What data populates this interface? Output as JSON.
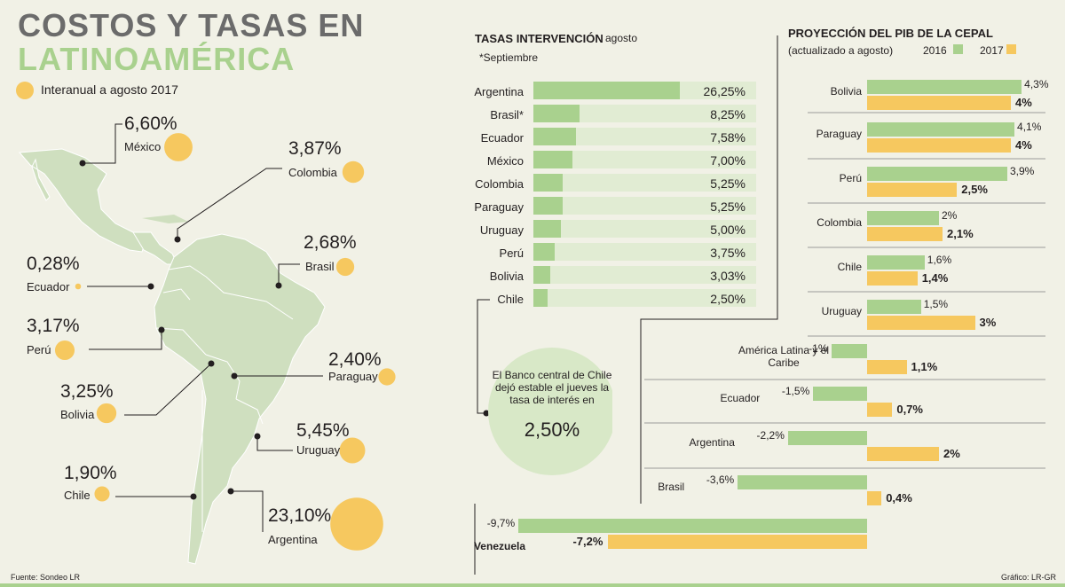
{
  "title": {
    "line1": "COSTOS Y TASAS EN",
    "line2": "LATINOAMÉRICA"
  },
  "legend": {
    "label": "Interanual a agosto 2017",
    "color": "#f6c85f"
  },
  "colors": {
    "green": "#a9d18e",
    "track": "#e1ecd3",
    "yellow": "#f6c85f",
    "map": "#cfdfbf"
  },
  "map_points": [
    {
      "country": "México",
      "pct": "6,60%",
      "value": 6.6
    },
    {
      "country": "Colombia",
      "pct": "3,87%",
      "value": 3.87
    },
    {
      "country": "Brasil",
      "pct": "2,68%",
      "value": 2.68
    },
    {
      "country": "Ecuador",
      "pct": "0,28%",
      "value": 0.28
    },
    {
      "country": "Perú",
      "pct": "3,17%",
      "value": 3.17
    },
    {
      "country": "Paraguay",
      "pct": "2,40%",
      "value": 2.4
    },
    {
      "country": "Bolivia",
      "pct": "3,25%",
      "value": 3.25
    },
    {
      "country": "Uruguay",
      "pct": "5,45%",
      "value": 5.45
    },
    {
      "country": "Chile",
      "pct": "1,90%",
      "value": 1.9
    },
    {
      "country": "Argentina",
      "pct": "23,10%",
      "value": 23.1
    }
  ],
  "rates": {
    "title": "TASAS INTERVENCIÓN",
    "subtitle": "agosto",
    "note": "*Septiembre",
    "items": [
      {
        "country": "Argentina",
        "value": 26.25,
        "label": "26,25%"
      },
      {
        "country": "Brasil*",
        "value": 8.25,
        "label": "8,25%"
      },
      {
        "country": "Ecuador",
        "value": 7.58,
        "label": "7,58%"
      },
      {
        "country": "México",
        "value": 7.0,
        "label": "7,00%"
      },
      {
        "country": "Colombia",
        "value": 5.25,
        "label": "5,25%"
      },
      {
        "country": "Paraguay",
        "value": 5.25,
        "label": "5,25%"
      },
      {
        "country": "Uruguay",
        "value": 5.0,
        "label": "5,00%"
      },
      {
        "country": "Perú",
        "value": 3.75,
        "label": "3,75%"
      },
      {
        "country": "Bolivia",
        "value": 3.03,
        "label": "3,03%"
      },
      {
        "country": "Chile",
        "value": 2.5,
        "label": "2,50%"
      }
    ]
  },
  "callout": {
    "text": "El Banco central de Chile dejó estable el jueves la tasa de interés en",
    "value": "2,50%"
  },
  "chart_data": {
    "type": "bar",
    "title": "PROYECCIÓN DEL PIB DE LA CEPAL",
    "subtitle": "(actualizado a agosto)",
    "legend": [
      "2016",
      "2017"
    ],
    "categories": [
      "Bolivia",
      "Paraguay",
      "Perú",
      "Colombia",
      "Chile",
      "Uruguay",
      "América Latina y el Caribe",
      "Ecuador",
      "Argentina",
      "Brasil",
      "Venezuela"
    ],
    "series": [
      {
        "name": "2016",
        "values": [
          4.3,
          4.1,
          3.9,
          2,
          1.6,
          1.5,
          -1,
          -1.5,
          -2.2,
          -3.6,
          -9.7
        ],
        "labels": [
          "4,3%",
          "4,1%",
          "3,9%",
          "2%",
          "1,6%",
          "1,5%",
          "-1%",
          "-1,5%",
          "-2,2%",
          "-3,6%",
          "-9,7%"
        ]
      },
      {
        "name": "2017",
        "values": [
          4,
          4,
          2.5,
          2.1,
          1.4,
          3,
          1.1,
          0.7,
          2,
          0.4,
          -7.2
        ],
        "labels": [
          "4%",
          "4%",
          "2,5%",
          "2,1%",
          "1,4%",
          "3%",
          "1,1%",
          "0,7%",
          "2%",
          "0,4%",
          "-7,2%"
        ]
      }
    ]
  },
  "footer": {
    "source": "Fuente: Sondeo LR",
    "credit": "Gráfico: LR-GR"
  }
}
